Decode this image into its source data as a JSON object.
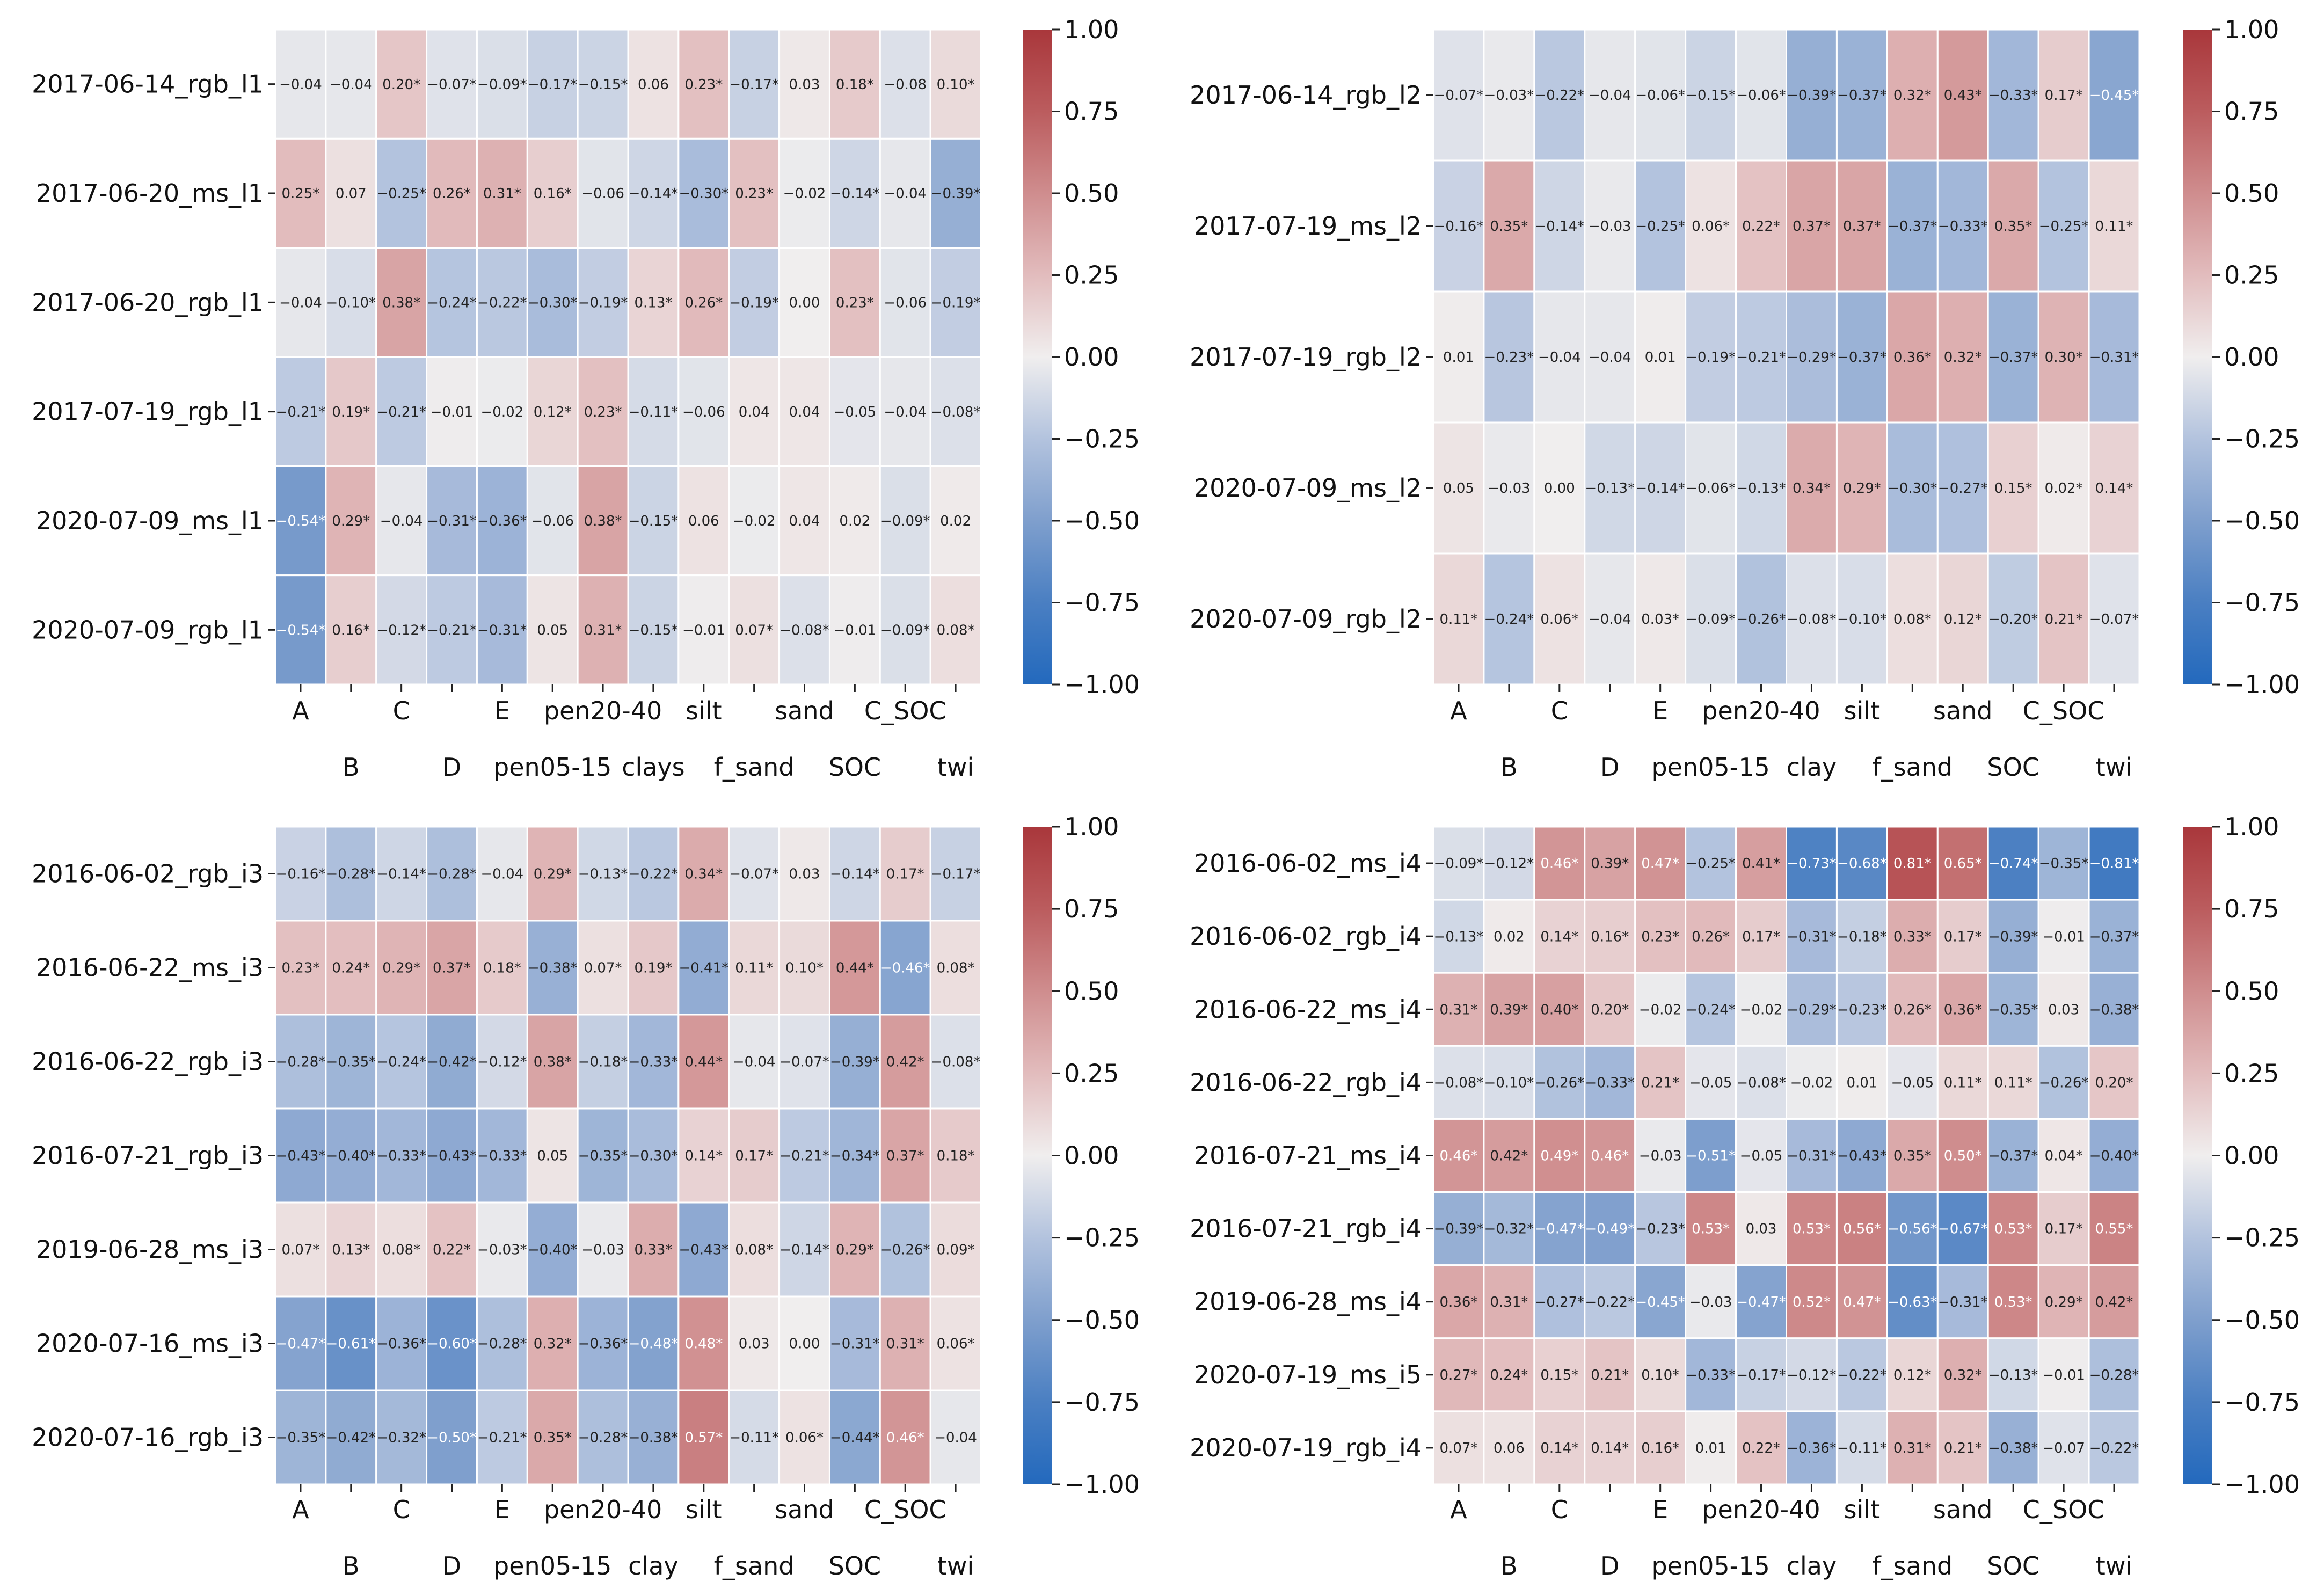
{
  "chart_data": [
    {
      "type": "heatmap",
      "panel": "top-left",
      "colorbar": {
        "min": -1.0,
        "max": 1.0,
        "ticks": [
          "1.00",
          "0.75",
          "0.50",
          "0.25",
          "0.00",
          "−0.25",
          "−0.50",
          "−0.75",
          "−1.00"
        ],
        "colormap": "vlag"
      },
      "x_upper_labels": [
        "A",
        "C",
        "E",
        "pen20-40",
        "silt",
        "sand",
        "C_SOC"
      ],
      "x_lower_labels": [
        "B",
        "D",
        "pen05-15",
        "clays",
        "f_sand",
        "SOC",
        "twi"
      ],
      "columns": [
        "A",
        "B",
        "C",
        "D",
        "E",
        "pen05-15",
        "pen20-40",
        "clays",
        "silt",
        "f_sand",
        "sand",
        "SOC",
        "C_SOC",
        "twi"
      ],
      "rows": [
        "2017-06-14_rgb_l1",
        "2017-06-20_ms_l1",
        "2017-06-20_rgb_l1",
        "2017-07-19_rgb_l1",
        "2020-07-09_ms_l1",
        "2020-07-09_rgb_l1"
      ],
      "values": [
        [
          -0.04,
          -0.04,
          0.2,
          -0.07,
          -0.09,
          -0.17,
          -0.15,
          0.06,
          0.23,
          -0.17,
          0.03,
          0.18,
          -0.08,
          0.1
        ],
        [
          0.25,
          0.07,
          -0.25,
          0.26,
          0.31,
          0.16,
          -0.06,
          -0.14,
          -0.3,
          0.23,
          -0.02,
          -0.14,
          -0.04,
          -0.39
        ],
        [
          -0.04,
          -0.1,
          0.38,
          -0.24,
          -0.22,
          -0.3,
          -0.19,
          0.13,
          0.26,
          -0.19,
          0.0,
          0.23,
          -0.06,
          -0.19
        ],
        [
          -0.21,
          0.19,
          -0.21,
          -0.01,
          -0.02,
          0.12,
          0.23,
          -0.11,
          -0.06,
          0.04,
          0.04,
          -0.05,
          -0.04,
          -0.08
        ],
        [
          -0.54,
          0.29,
          -0.04,
          -0.31,
          -0.36,
          -0.06,
          0.38,
          -0.15,
          0.06,
          -0.02,
          0.04,
          0.02,
          -0.09,
          0.02
        ],
        [
          -0.54,
          0.16,
          -0.12,
          -0.21,
          -0.31,
          0.05,
          0.31,
          -0.15,
          -0.01,
          0.07,
          -0.08,
          -0.01,
          -0.09,
          0.08
        ]
      ],
      "significant": [
        [
          0,
          0,
          1,
          1,
          1,
          1,
          1,
          0,
          1,
          1,
          0,
          1,
          0,
          1
        ],
        [
          1,
          0,
          1,
          1,
          1,
          1,
          0,
          1,
          1,
          1,
          0,
          1,
          0,
          1
        ],
        [
          0,
          1,
          1,
          1,
          1,
          1,
          1,
          1,
          1,
          1,
          0,
          1,
          0,
          1
        ],
        [
          1,
          1,
          1,
          0,
          0,
          1,
          1,
          1,
          0,
          0,
          0,
          0,
          0,
          1
        ],
        [
          1,
          1,
          0,
          1,
          1,
          0,
          1,
          1,
          0,
          0,
          0,
          0,
          1,
          0
        ],
        [
          1,
          1,
          1,
          1,
          1,
          0,
          1,
          1,
          0,
          1,
          1,
          0,
          1,
          1
        ]
      ]
    },
    {
      "type": "heatmap",
      "panel": "top-right",
      "colorbar": {
        "min": -1.0,
        "max": 1.0,
        "ticks": [
          "1.00",
          "0.75",
          "0.50",
          "0.25",
          "0.00",
          "−0.25",
          "−0.50",
          "−0.75",
          "−1.00"
        ],
        "colormap": "vlag"
      },
      "x_upper_labels": [
        "A",
        "C",
        "E",
        "pen20-40",
        "silt",
        "sand",
        "C_SOC"
      ],
      "x_lower_labels": [
        "B",
        "D",
        "pen05-15",
        "clay",
        "f_sand",
        "SOC",
        "twi"
      ],
      "columns": [
        "A",
        "B",
        "C",
        "D",
        "E",
        "pen05-15",
        "pen20-40",
        "clay",
        "silt",
        "f_sand",
        "sand",
        "SOC",
        "C_SOC",
        "twi"
      ],
      "rows": [
        "2017-06-14_rgb_l2",
        "2017-07-19_ms_l2",
        "2017-07-19_rgb_l2",
        "2020-07-09_ms_l2",
        "2020-07-09_rgb_l2"
      ],
      "values": [
        [
          -0.07,
          -0.03,
          -0.22,
          -0.04,
          -0.06,
          -0.15,
          -0.06,
          -0.39,
          -0.37,
          0.32,
          0.43,
          -0.33,
          0.17,
          -0.45
        ],
        [
          -0.16,
          0.35,
          -0.14,
          -0.03,
          -0.25,
          0.06,
          0.22,
          0.37,
          0.37,
          -0.37,
          -0.33,
          0.35,
          -0.25,
          0.11
        ],
        [
          0.01,
          -0.23,
          -0.04,
          -0.04,
          0.01,
          -0.19,
          -0.21,
          -0.29,
          -0.37,
          0.36,
          0.32,
          -0.37,
          0.3,
          -0.31
        ],
        [
          0.05,
          -0.03,
          0.0,
          -0.13,
          -0.14,
          -0.06,
          -0.13,
          0.34,
          0.29,
          -0.3,
          -0.27,
          0.15,
          0.02,
          0.14
        ],
        [
          0.11,
          -0.24,
          0.06,
          -0.04,
          0.03,
          -0.09,
          -0.26,
          -0.08,
          -0.1,
          0.08,
          0.12,
          -0.2,
          0.21,
          -0.07
        ]
      ],
      "significant": [
        [
          1,
          1,
          1,
          0,
          1,
          1,
          1,
          1,
          1,
          1,
          1,
          1,
          1,
          1
        ],
        [
          1,
          1,
          1,
          0,
          1,
          1,
          1,
          1,
          1,
          1,
          1,
          1,
          1,
          1
        ],
        [
          0,
          1,
          0,
          0,
          0,
          1,
          1,
          1,
          1,
          1,
          1,
          1,
          1,
          1
        ],
        [
          0,
          0,
          0,
          1,
          1,
          1,
          1,
          1,
          1,
          1,
          1,
          1,
          1,
          1
        ],
        [
          1,
          1,
          1,
          0,
          1,
          1,
          1,
          1,
          1,
          1,
          1,
          1,
          1,
          1
        ]
      ]
    },
    {
      "type": "heatmap",
      "panel": "bottom-left",
      "colorbar": {
        "min": -1.0,
        "max": 1.0,
        "ticks": [
          "1.00",
          "0.75",
          "0.50",
          "0.25",
          "0.00",
          "−0.25",
          "−0.50",
          "−0.75",
          "−1.00"
        ],
        "colormap": "vlag"
      },
      "x_upper_labels": [
        "A",
        "C",
        "E",
        "pen20-40",
        "silt",
        "sand",
        "C_SOC"
      ],
      "x_lower_labels": [
        "B",
        "D",
        "pen05-15",
        "clay",
        "f_sand",
        "SOC",
        "twi"
      ],
      "columns": [
        "A",
        "B",
        "C",
        "D",
        "E",
        "pen05-15",
        "pen20-40",
        "clay",
        "silt",
        "f_sand",
        "sand",
        "SOC",
        "C_SOC",
        "twi"
      ],
      "rows": [
        "2016-06-02_rgb_i3",
        "2016-06-22_ms_i3",
        "2016-06-22_rgb_i3",
        "2016-07-21_rgb_i3",
        "2019-06-28_ms_i3",
        "2020-07-16_ms_i3",
        "2020-07-16_rgb_i3"
      ],
      "values": [
        [
          -0.16,
          -0.28,
          -0.14,
          -0.28,
          -0.04,
          0.29,
          -0.13,
          -0.22,
          0.34,
          -0.07,
          0.03,
          -0.14,
          0.17,
          -0.17
        ],
        [
          0.23,
          0.24,
          0.29,
          0.37,
          0.18,
          -0.38,
          0.07,
          0.19,
          -0.41,
          0.11,
          0.1,
          0.44,
          -0.46,
          0.08
        ],
        [
          -0.28,
          -0.35,
          -0.24,
          -0.42,
          -0.12,
          0.38,
          -0.18,
          -0.33,
          0.44,
          -0.04,
          -0.07,
          -0.39,
          0.42,
          -0.08
        ],
        [
          -0.43,
          -0.4,
          -0.33,
          -0.43,
          -0.33,
          0.05,
          -0.35,
          -0.3,
          0.14,
          0.17,
          -0.21,
          -0.34,
          0.37,
          0.18
        ],
        [
          0.07,
          0.13,
          0.08,
          0.22,
          -0.03,
          -0.4,
          -0.03,
          0.33,
          -0.43,
          0.08,
          -0.14,
          0.29,
          -0.26,
          0.09
        ],
        [
          -0.47,
          -0.61,
          -0.36,
          -0.6,
          -0.28,
          0.32,
          -0.36,
          -0.48,
          0.48,
          0.03,
          0.0,
          -0.31,
          0.31,
          0.06
        ],
        [
          -0.35,
          -0.42,
          -0.32,
          -0.5,
          -0.21,
          0.35,
          -0.28,
          -0.38,
          0.57,
          -0.11,
          0.06,
          -0.44,
          0.46,
          -0.04
        ]
      ],
      "significant": [
        [
          1,
          1,
          1,
          1,
          0,
          1,
          1,
          1,
          1,
          1,
          0,
          1,
          1,
          1
        ],
        [
          1,
          1,
          1,
          1,
          1,
          1,
          1,
          1,
          1,
          1,
          1,
          1,
          1,
          1
        ],
        [
          1,
          1,
          1,
          1,
          1,
          1,
          1,
          1,
          1,
          0,
          1,
          1,
          1,
          1
        ],
        [
          1,
          1,
          1,
          1,
          1,
          0,
          1,
          1,
          1,
          1,
          1,
          1,
          1,
          1
        ],
        [
          1,
          1,
          1,
          1,
          1,
          1,
          0,
          1,
          1,
          1,
          1,
          1,
          1,
          1
        ],
        [
          1,
          1,
          1,
          1,
          1,
          1,
          1,
          1,
          1,
          0,
          0,
          1,
          1,
          1
        ],
        [
          1,
          1,
          1,
          1,
          1,
          1,
          1,
          1,
          1,
          1,
          1,
          1,
          1,
          0
        ]
      ]
    },
    {
      "type": "heatmap",
      "panel": "bottom-right",
      "colorbar": {
        "min": -1.0,
        "max": 1.0,
        "ticks": [
          "1.00",
          "0.75",
          "0.50",
          "0.25",
          "0.00",
          "−0.25",
          "−0.50",
          "−0.75",
          "−1.00"
        ],
        "colormap": "vlag"
      },
      "x_upper_labels": [
        "A",
        "C",
        "E",
        "pen20-40",
        "silt",
        "sand",
        "C_SOC"
      ],
      "x_lower_labels": [
        "B",
        "D",
        "pen05-15",
        "clay",
        "f_sand",
        "SOC",
        "twi"
      ],
      "columns": [
        "A",
        "B",
        "C",
        "D",
        "E",
        "pen05-15",
        "pen20-40",
        "clay",
        "silt",
        "f_sand",
        "sand",
        "SOC",
        "C_SOC",
        "twi"
      ],
      "rows": [
        "2016-06-02_ms_i4",
        "2016-06-02_rgb_i4",
        "2016-06-22_ms_i4",
        "2016-06-22_rgb_i4",
        "2016-07-21_ms_i4",
        "2016-07-21_rgb_i4",
        "2019-06-28_ms_i4",
        "2020-07-19_ms_i5",
        "2020-07-19_rgb_i4"
      ],
      "values": [
        [
          -0.09,
          -0.12,
          0.46,
          0.39,
          0.47,
          -0.25,
          0.41,
          -0.73,
          -0.68,
          0.81,
          0.65,
          -0.74,
          -0.35,
          -0.81
        ],
        [
          -0.13,
          0.02,
          0.14,
          0.16,
          0.23,
          0.26,
          0.17,
          -0.31,
          -0.18,
          0.33,
          0.17,
          -0.39,
          -0.01,
          -0.37
        ],
        [
          0.31,
          0.39,
          0.4,
          0.2,
          -0.02,
          -0.24,
          -0.02,
          -0.29,
          -0.23,
          0.26,
          0.36,
          -0.35,
          0.03,
          -0.38
        ],
        [
          -0.08,
          -0.1,
          -0.26,
          -0.33,
          0.21,
          -0.05,
          -0.08,
          -0.02,
          0.01,
          -0.05,
          0.11,
          0.11,
          -0.26,
          0.2
        ],
        [
          0.46,
          0.42,
          0.49,
          0.46,
          -0.03,
          -0.51,
          -0.05,
          -0.31,
          -0.43,
          0.35,
          0.5,
          -0.37,
          0.04,
          -0.4
        ],
        [
          -0.39,
          -0.32,
          -0.47,
          -0.49,
          -0.23,
          0.53,
          0.03,
          0.53,
          0.56,
          -0.56,
          -0.67,
          0.53,
          0.17,
          0.55
        ],
        [
          0.36,
          0.31,
          -0.27,
          -0.22,
          -0.45,
          -0.03,
          -0.47,
          0.52,
          0.47,
          -0.63,
          -0.31,
          0.53,
          0.29,
          0.42
        ],
        [
          0.27,
          0.24,
          0.15,
          0.21,
          0.1,
          -0.33,
          -0.17,
          -0.12,
          -0.22,
          0.12,
          0.32,
          -0.13,
          -0.01,
          -0.28
        ],
        [
          0.07,
          0.06,
          0.14,
          0.14,
          0.16,
          0.01,
          0.22,
          -0.36,
          -0.11,
          0.31,
          0.21,
          -0.38,
          -0.07,
          -0.22
        ]
      ],
      "significant": [
        [
          1,
          1,
          1,
          1,
          1,
          1,
          1,
          1,
          1,
          1,
          1,
          1,
          1,
          1
        ],
        [
          1,
          0,
          1,
          1,
          1,
          1,
          1,
          1,
          1,
          1,
          1,
          1,
          0,
          1
        ],
        [
          1,
          1,
          1,
          1,
          0,
          1,
          0,
          1,
          1,
          1,
          1,
          1,
          0,
          1
        ],
        [
          1,
          1,
          1,
          1,
          1,
          0,
          1,
          0,
          0,
          0,
          1,
          1,
          1,
          1
        ],
        [
          1,
          1,
          1,
          1,
          0,
          1,
          0,
          1,
          1,
          1,
          1,
          1,
          1,
          1
        ],
        [
          1,
          1,
          1,
          1,
          1,
          1,
          0,
          1,
          1,
          1,
          1,
          1,
          1,
          1
        ],
        [
          1,
          1,
          1,
          1,
          1,
          0,
          1,
          1,
          1,
          1,
          1,
          1,
          1,
          1
        ],
        [
          1,
          1,
          1,
          1,
          1,
          1,
          1,
          1,
          1,
          1,
          1,
          1,
          0,
          1
        ],
        [
          1,
          0,
          1,
          1,
          1,
          0,
          1,
          1,
          1,
          1,
          1,
          1,
          0,
          1
        ]
      ]
    }
  ]
}
